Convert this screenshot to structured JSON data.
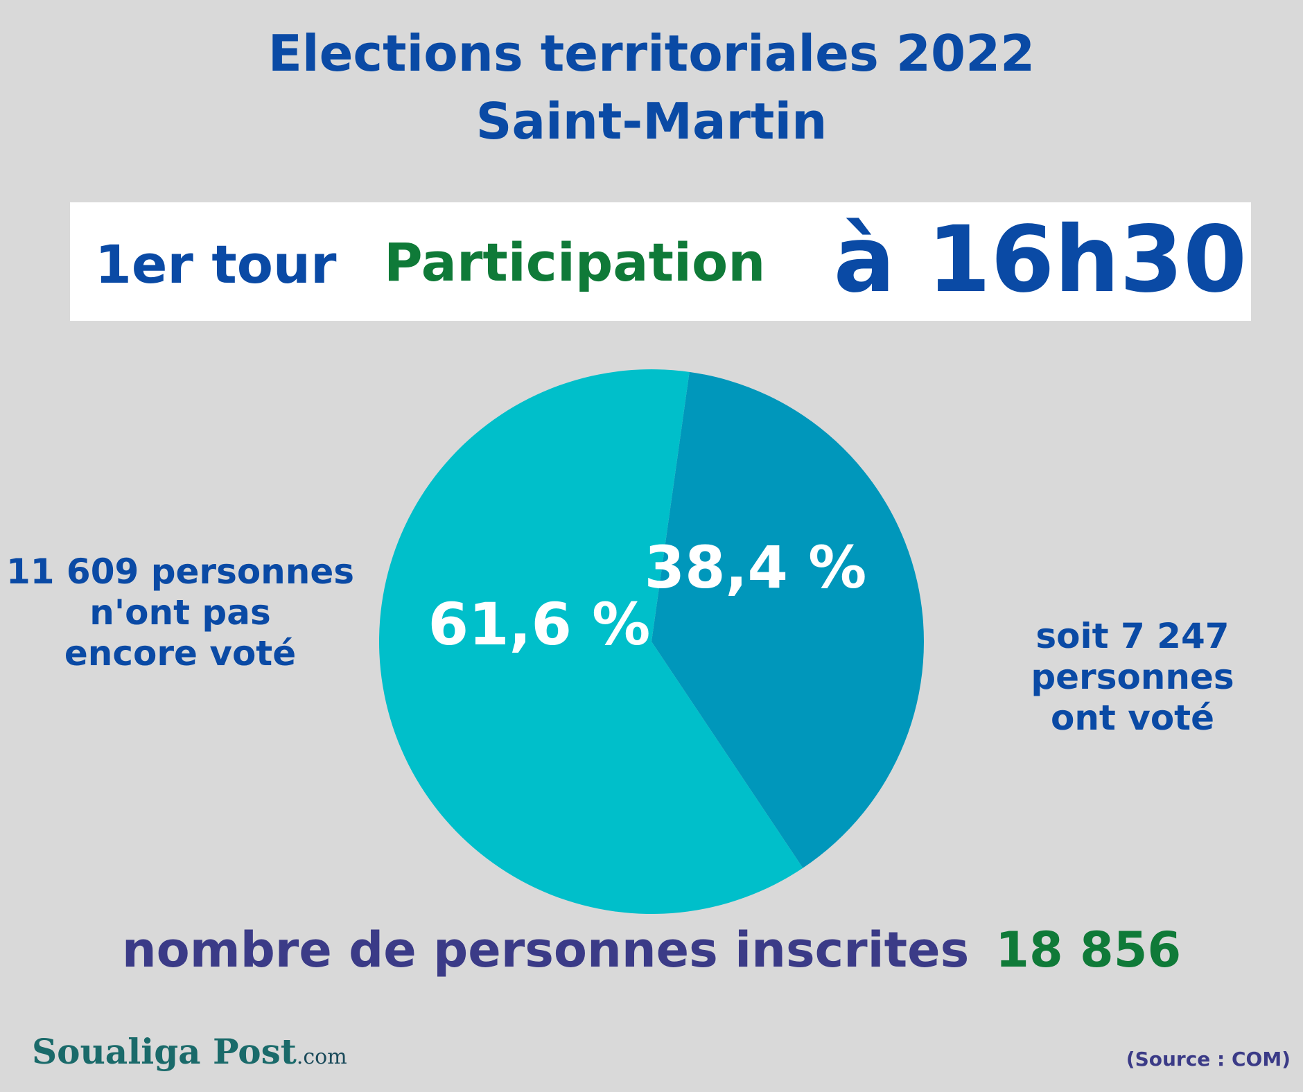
{
  "header": {
    "title_line1": "Elections territoriales 2022",
    "title_line2": "Saint-Martin"
  },
  "banner": {
    "round": "1er tour",
    "label": "Participation",
    "time": "à 16h30"
  },
  "chart_data": {
    "type": "pie",
    "series": [
      {
        "name": "n'ont pas encore voté",
        "value": 61.6,
        "label": "61,6 %",
        "color": "#00bfca"
      },
      {
        "name": "ont voté",
        "value": 38.4,
        "label": "38,4 %",
        "color": "#0097bb"
      }
    ]
  },
  "notes": {
    "not_voted": [
      "11 609 personnes",
      "n'ont pas",
      "encore voté"
    ],
    "voted": [
      "soit 7 247",
      "personnes",
      "ont voté"
    ]
  },
  "footer": {
    "label": "nombre de personnes inscrites",
    "value": "18 856"
  },
  "logo": {
    "name": "Soualiga Post",
    "tld": ".com"
  },
  "source": "(Source : COM)",
  "colors": {
    "title": "#0a4aa5",
    "green": "#0f7a38",
    "footer_label": "#3b3b87",
    "background": "#d9d9d9"
  }
}
